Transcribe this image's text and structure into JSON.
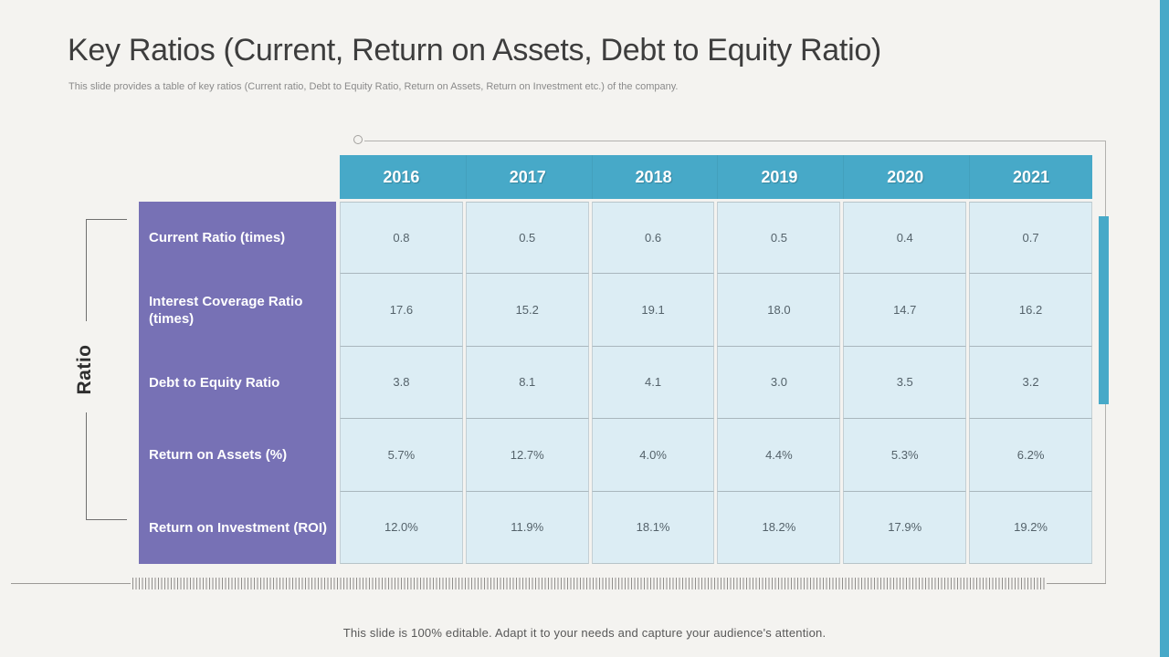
{
  "slide": {
    "title": "Key Ratios (Current, Return on Assets, Debt to Equity Ratio)",
    "subtitle": "This slide provides a table of key ratios (Current ratio, Debt to Equity Ratio, Return on Assets, Return on Investment etc.) of the company.",
    "axis_label": "Ratio",
    "footer": "This slide is 100% editable. Adapt it to your needs and capture your audience's attention."
  },
  "colors": {
    "teal": "#47a9c8",
    "purple": "#7771b5",
    "cell_blue": "#dcedf4",
    "background": "#f4f3f0"
  },
  "chart_data": {
    "type": "table",
    "columns": [
      "2016",
      "2017",
      "2018",
      "2019",
      "2020",
      "2021"
    ],
    "rows": [
      {
        "label": "Current Ratio (times)",
        "values": [
          "0.8",
          "0.5",
          "0.6",
          "0.5",
          "0.4",
          "0.7"
        ]
      },
      {
        "label": "Interest Coverage Ratio (times)",
        "values": [
          "17.6",
          "15.2",
          "19.1",
          "18.0",
          "14.7",
          "16.2"
        ]
      },
      {
        "label": "Debt to Equity Ratio",
        "values": [
          "3.8",
          "8.1",
          "4.1",
          "3.0",
          "3.5",
          "3.2"
        ]
      },
      {
        "label": "Return on Assets (%)",
        "values": [
          "5.7%",
          "12.7%",
          "4.0%",
          "4.4%",
          "5.3%",
          "6.2%"
        ]
      },
      {
        "label": "Return on Investment (ROI)",
        "values": [
          "12.0%",
          "11.9%",
          "18.1%",
          "18.2%",
          "17.9%",
          "19.2%"
        ]
      }
    ]
  }
}
